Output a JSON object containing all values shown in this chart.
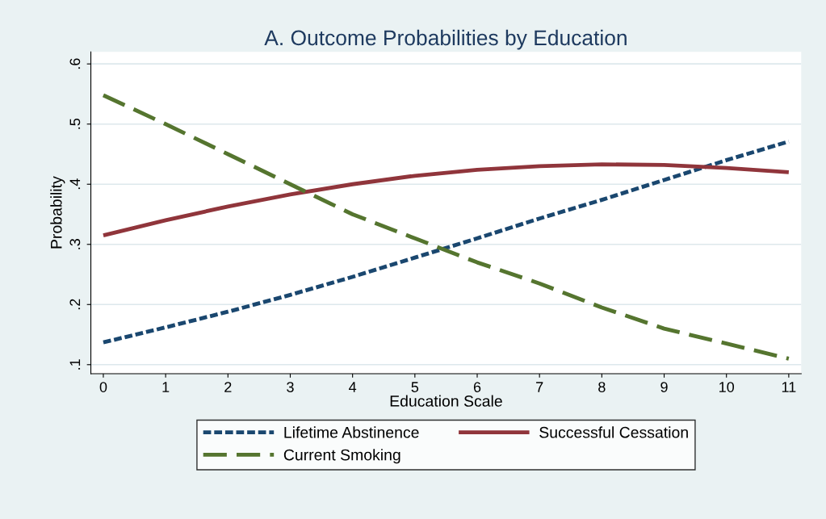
{
  "chart_data": {
    "type": "line",
    "title": "A. Outcome Probabilities by Education",
    "xlabel": "Education Scale",
    "ylabel": "Probability",
    "x": [
      0,
      1,
      2,
      3,
      4,
      5,
      6,
      7,
      8,
      9,
      10,
      11
    ],
    "series": [
      {
        "name": "Lifetime Abstinence",
        "color": "#1a476f",
        "line_style": "dotted",
        "values": [
          0.137,
          0.162,
          0.188,
          0.216,
          0.246,
          0.278,
          0.31,
          0.343,
          0.374,
          0.407,
          0.44,
          0.471
        ]
      },
      {
        "name": "Successful Cessation",
        "color": "#90353b",
        "line_style": "solid",
        "values": [
          0.315,
          0.34,
          0.363,
          0.383,
          0.4,
          0.414,
          0.424,
          0.43,
          0.433,
          0.432,
          0.427,
          0.42
        ]
      },
      {
        "name": "Current Smoking",
        "color": "#55752f",
        "line_style": "dashed",
        "values": [
          0.548,
          0.5,
          0.45,
          0.4,
          0.35,
          0.31,
          0.27,
          0.235,
          0.195,
          0.16,
          0.135,
          0.11
        ]
      }
    ],
    "xlim": [
      -0.2,
      11.2
    ],
    "ylim": [
      0.085,
      0.62
    ],
    "xticks": [
      0,
      1,
      2,
      3,
      4,
      5,
      6,
      7,
      8,
      9,
      10,
      11
    ],
    "yticks": [
      {
        "value": 0.1,
        "label": ".1"
      },
      {
        "value": 0.2,
        "label": ".2"
      },
      {
        "value": 0.3,
        "label": ".3"
      },
      {
        "value": 0.4,
        "label": ".4"
      },
      {
        "value": 0.5,
        "label": ".5"
      },
      {
        "value": 0.6,
        "label": ".6"
      }
    ],
    "grid": "y",
    "legend": "bottom",
    "marker": "none"
  }
}
